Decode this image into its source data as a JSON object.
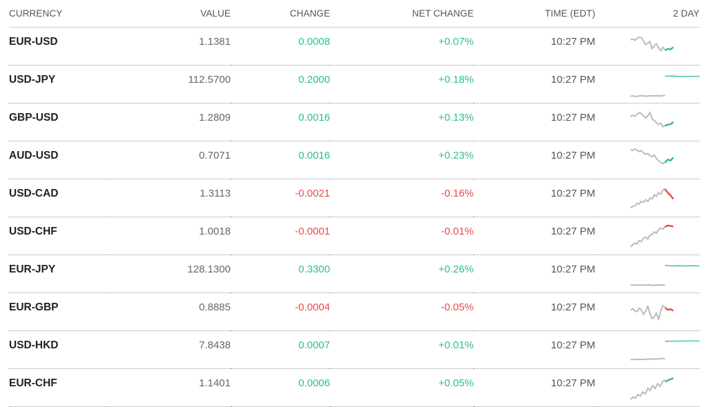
{
  "headers": {
    "currency": "CURRENCY",
    "value": "VALUE",
    "change": "CHANGE",
    "net_change": "NET CHANGE",
    "time": "TIME (EDT)",
    "spark": "2 DAY"
  },
  "colors": {
    "positive": "#2bbf8a",
    "negative": "#e84a4a",
    "history": "#bbbbbb"
  },
  "rows": [
    {
      "currency": "EUR-USD",
      "value": "1.1381",
      "change": "0.0008",
      "net_change": "+0.07%",
      "time": "10:27 PM",
      "direction": "pos",
      "spark": {
        "history": [
          0.74,
          0.78,
          0.72,
          0.8,
          0.85,
          0.83,
          0.7,
          0.55,
          0.62,
          0.68,
          0.4,
          0.52,
          0.6,
          0.44,
          0.32,
          0.46,
          0.36
        ],
        "today": [
          0.34,
          0.4,
          0.38,
          0.46
        ]
      }
    },
    {
      "currency": "USD-JPY",
      "value": "112.5700",
      "change": "0.2000",
      "net_change": "+0.18%",
      "time": "10:27 PM",
      "direction": "pos",
      "spark": {
        "history": [
          0.04,
          0.05,
          0.03,
          0.05,
          0.06,
          0.05,
          0.04,
          0.06,
          0.05,
          0.06,
          0.05,
          0.06,
          0.07
        ],
        "today": [
          0.8,
          0.81,
          0.8,
          0.79,
          0.8,
          0.8
        ]
      }
    },
    {
      "currency": "GBP-USD",
      "value": "1.2809",
      "change": "0.0016",
      "net_change": "+0.13%",
      "time": "10:27 PM",
      "direction": "pos",
      "spark": {
        "history": [
          0.7,
          0.76,
          0.72,
          0.8,
          0.86,
          0.82,
          0.74,
          0.66,
          0.74,
          0.88,
          0.62,
          0.56,
          0.48,
          0.4,
          0.46,
          0.32,
          0.38
        ],
        "today": [
          0.36,
          0.4,
          0.42,
          0.5
        ]
      }
    },
    {
      "currency": "AUD-USD",
      "value": "0.7071",
      "change": "0.0016",
      "net_change": "+0.23%",
      "time": "10:27 PM",
      "direction": "pos",
      "spark": {
        "history": [
          0.9,
          0.86,
          0.92,
          0.88,
          0.82,
          0.86,
          0.78,
          0.72,
          0.76,
          0.66,
          0.62,
          0.7,
          0.56,
          0.48,
          0.4,
          0.36,
          0.42
        ],
        "today": [
          0.4,
          0.52,
          0.48,
          0.6
        ]
      }
    },
    {
      "currency": "USD-CAD",
      "value": "1.3113",
      "change": "-0.0021",
      "net_change": "-0.16%",
      "time": "10:27 PM",
      "direction": "neg",
      "spark": {
        "history": [
          0.12,
          0.18,
          0.2,
          0.3,
          0.26,
          0.38,
          0.34,
          0.44,
          0.36,
          0.5,
          0.46,
          0.62,
          0.56,
          0.7,
          0.64,
          0.8,
          0.86
        ],
        "today": [
          0.84,
          0.7,
          0.6,
          0.46
        ]
      }
    },
    {
      "currency": "USD-CHF",
      "value": "1.0018",
      "change": "-0.0001",
      "net_change": "-0.01%",
      "time": "10:27 PM",
      "direction": "neg",
      "spark": {
        "history": [
          0.08,
          0.16,
          0.22,
          0.2,
          0.32,
          0.28,
          0.4,
          0.46,
          0.38,
          0.52,
          0.56,
          0.66,
          0.6,
          0.74,
          0.8,
          0.76,
          0.86
        ],
        "today": [
          0.84,
          0.9,
          0.88,
          0.86
        ]
      }
    },
    {
      "currency": "EUR-JPY",
      "value": "128.1300",
      "change": "0.3300",
      "net_change": "+0.26%",
      "time": "10:27 PM",
      "direction": "pos",
      "spark": {
        "history": [
          0.08,
          0.07,
          0.08,
          0.06,
          0.08,
          0.07,
          0.08,
          0.06,
          0.07,
          0.08,
          0.07,
          0.08
        ],
        "today": [
          0.82,
          0.8,
          0.81,
          0.8,
          0.81,
          0.8
        ]
      }
    },
    {
      "currency": "EUR-GBP",
      "value": "0.8885",
      "change": "-0.0004",
      "net_change": "-0.05%",
      "time": "10:27 PM",
      "direction": "neg",
      "spark": {
        "history": [
          0.56,
          0.62,
          0.54,
          0.5,
          0.64,
          0.58,
          0.4,
          0.52,
          0.72,
          0.44,
          0.24,
          0.3,
          0.46,
          0.2,
          0.54,
          0.74,
          0.68
        ],
        "today": [
          0.66,
          0.58,
          0.6,
          0.54
        ]
      }
    },
    {
      "currency": "USD-HKD",
      "value": "7.8438",
      "change": "0.0007",
      "net_change": "+0.01%",
      "time": "10:27 PM",
      "direction": "pos",
      "spark": {
        "history": [
          0.12,
          0.13,
          0.14,
          0.13,
          0.14,
          0.15,
          0.14,
          0.15,
          0.16,
          0.16
        ],
        "today": [
          0.82,
          0.83,
          0.83,
          0.84,
          0.84,
          0.84
        ]
      }
    },
    {
      "currency": "EUR-CHF",
      "value": "1.1401",
      "change": "0.0006",
      "net_change": "+0.05%",
      "time": "10:27 PM",
      "direction": "pos",
      "spark": {
        "history": [
          0.06,
          0.14,
          0.1,
          0.24,
          0.18,
          0.34,
          0.26,
          0.48,
          0.4,
          0.58,
          0.46,
          0.66,
          0.54,
          0.74,
          0.8
        ],
        "today": [
          0.72,
          0.78,
          0.82,
          0.86
        ]
      }
    }
  ]
}
